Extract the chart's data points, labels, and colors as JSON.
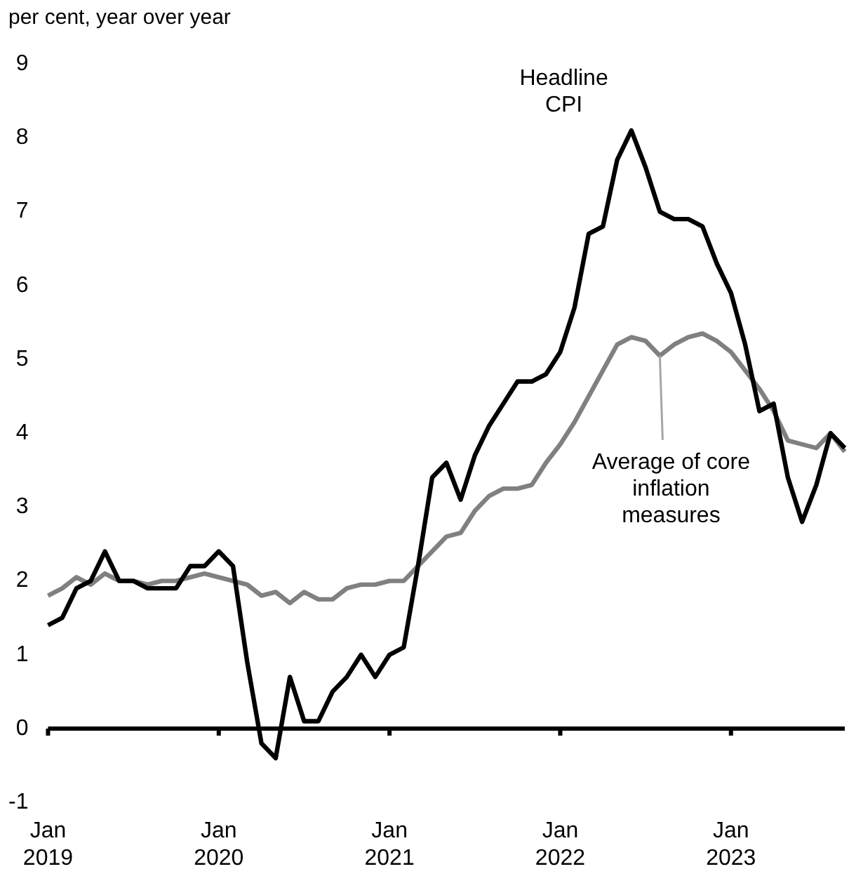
{
  "chart_data": {
    "type": "line",
    "ylabel": "per cent, year over year",
    "categories": [
      "Jan 2019",
      null,
      null,
      null,
      null,
      null,
      null,
      null,
      null,
      null,
      null,
      null,
      "Jan 2020",
      null,
      null,
      null,
      null,
      null,
      null,
      null,
      null,
      null,
      null,
      null,
      "Jan 2021",
      null,
      null,
      null,
      null,
      null,
      null,
      null,
      null,
      null,
      null,
      null,
      "Jan 2022",
      null,
      null,
      null,
      null,
      null,
      null,
      null,
      null,
      null,
      null,
      null,
      "Jan 2023",
      null,
      null,
      null,
      null,
      null,
      null,
      null,
      null
    ],
    "series": [
      {
        "name": "Headline CPI",
        "color": "#000000",
        "values": [
          1.4,
          1.5,
          1.9,
          2.0,
          2.4,
          2.0,
          2.0,
          1.9,
          1.9,
          1.9,
          2.2,
          2.2,
          2.4,
          2.2,
          0.9,
          -0.2,
          -0.4,
          0.7,
          0.1,
          0.1,
          0.5,
          0.7,
          1.0,
          0.7,
          1.0,
          1.1,
          2.2,
          3.4,
          3.6,
          3.1,
          3.7,
          4.1,
          4.4,
          4.7,
          4.7,
          4.8,
          5.1,
          5.7,
          6.7,
          6.8,
          7.7,
          8.1,
          7.6,
          7.0,
          6.9,
          6.9,
          6.8,
          6.3,
          5.9,
          5.2,
          4.3,
          4.4,
          3.4,
          2.8,
          3.3,
          4.0,
          3.8
        ]
      },
      {
        "name": "Average of core inflation measures",
        "color": "#808080",
        "values": [
          1.8,
          1.9,
          2.05,
          1.95,
          2.1,
          2.0,
          2.0,
          1.95,
          2.0,
          2.0,
          2.05,
          2.1,
          2.05,
          2.0,
          1.95,
          1.8,
          1.85,
          1.7,
          1.85,
          1.75,
          1.75,
          1.9,
          1.95,
          1.95,
          2.0,
          2.0,
          2.2,
          2.4,
          2.6,
          2.65,
          2.95,
          3.15,
          3.25,
          3.25,
          3.3,
          3.6,
          3.85,
          4.15,
          4.5,
          4.85,
          5.2,
          5.3,
          5.25,
          5.05,
          5.2,
          5.3,
          5.35,
          5.25,
          5.1,
          4.85,
          4.6,
          4.3,
          3.9,
          3.85,
          3.8,
          4.0,
          3.75
        ]
      }
    ],
    "ylim": [
      -1,
      9
    ],
    "yticks": [
      -1,
      0,
      1,
      2,
      3,
      4,
      5,
      6,
      7,
      8,
      9
    ],
    "marker": "none"
  }
}
